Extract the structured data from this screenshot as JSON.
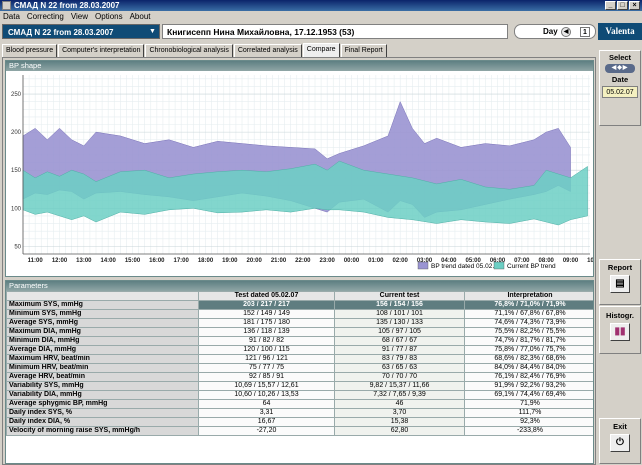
{
  "window": {
    "title": "СМАД  N 22 from 28.03.2007"
  },
  "menu": [
    "Data",
    "Correcting",
    "View",
    "Options",
    "About"
  ],
  "record": {
    "label": "СМАД  N 22 from 28.03.2007"
  },
  "patient": {
    "name": "Книгисепп Нина Михайловна, 17.12.1953 (53)"
  },
  "day": {
    "label": "Day",
    "value": "1"
  },
  "tabs": [
    "Blood pressure",
    "Computer's interpretation",
    "Chronobiological analysis",
    "Correlated analysis",
    "Compare",
    "Final Report"
  ],
  "active_tab": "Compare",
  "chart_panel": {
    "title": "BP shape"
  },
  "chart_data": {
    "type": "area",
    "title": "",
    "x_ticks": [
      "11:00",
      "12:00",
      "13:00",
      "14:00",
      "15:00",
      "16:00",
      "17:00",
      "18:00",
      "19:00",
      "20:00",
      "21:00",
      "22:00",
      "23:00",
      "00:00",
      "01:00",
      "02:00",
      "03:00",
      "04:00",
      "05:00",
      "06:00",
      "07:00",
      "08:00",
      "09:00",
      "10:00"
    ],
    "ylim": [
      40,
      275
    ],
    "y_ticks": [
      50,
      100,
      150,
      200,
      250
    ],
    "x_unit": "hours from 11:00",
    "grid": true,
    "legend": "bottom-right",
    "series": [
      {
        "name": "BP trend dated 05.02.07",
        "color": "#9a94d2",
        "x": [
          0,
          0.5,
          1,
          1.5,
          2,
          2.5,
          3,
          4,
          5,
          6,
          7,
          8,
          9,
          10,
          11,
          12,
          12.5,
          13,
          14,
          15,
          15.5,
          16,
          16.5,
          17,
          18,
          19,
          20,
          21,
          21.5,
          22,
          22.5
        ],
        "upper": [
          195,
          205,
          190,
          205,
          190,
          182,
          200,
          195,
          185,
          190,
          180,
          188,
          185,
          182,
          180,
          178,
          165,
          172,
          182,
          195,
          240,
          205,
          185,
          192,
          180,
          185,
          182,
          190,
          200,
          205,
          180
        ],
        "lower": [
          112,
          120,
          118,
          124,
          122,
          112,
          120,
          122,
          118,
          115,
          110,
          115,
          120,
          116,
          110,
          100,
          95,
          108,
          112,
          95,
          110,
          105,
          88,
          95,
          98,
          105,
          112,
          118,
          122,
          130,
          122
        ]
      },
      {
        "name": "Current BP trend",
        "color": "#6ccfc4",
        "x": [
          0,
          0.5,
          1,
          1.5,
          2,
          2.5,
          3,
          4,
          5,
          6,
          7,
          8,
          9,
          10,
          11,
          12,
          12.5,
          13,
          14,
          15,
          16,
          17,
          18,
          19,
          20,
          21,
          21.5,
          22,
          22.5,
          23.2
        ],
        "upper": [
          150,
          140,
          148,
          142,
          150,
          145,
          135,
          148,
          150,
          140,
          145,
          148,
          150,
          148,
          152,
          158,
          150,
          162,
          150,
          145,
          140,
          132,
          138,
          128,
          125,
          130,
          150,
          145,
          140,
          155
        ],
        "lower": [
          98,
          92,
          95,
          90,
          85,
          90,
          82,
          95,
          92,
          98,
          100,
          94,
          95,
          98,
          95,
          100,
          98,
          98,
          95,
          88,
          85,
          80,
          85,
          82,
          80,
          86,
          82,
          78,
          85,
          90
        ]
      }
    ]
  },
  "params": {
    "title": "Parameters",
    "headers": [
      "",
      "Test dated 05.02.07",
      "Current test",
      "Interpretation"
    ],
    "rows": [
      [
        "Maximum SYS, mmHg",
        "203 / 217 / 217",
        "156 / 154 / 156",
        "76,8% / 71,0% / 71,9%"
      ],
      [
        "Minimum SYS, mmHg",
        "152 / 149 / 149",
        "108 / 101 / 101",
        "71,1% / 67,8% / 67,8%"
      ],
      [
        "Average SYS, mmHg",
        "181 / 175 / 180",
        "135 / 130 / 133",
        "74,6% / 74,3% / 73,9%"
      ],
      [
        "Maximum DIA, mmHg",
        "136 / 118 / 139",
        "105 / 97 / 105",
        "75,5% / 82,2% / 75,5%"
      ],
      [
        "Minimum DIA, mmHg",
        "91 / 82 / 82",
        "68 / 67 / 67",
        "74,7% / 81,7% / 81,7%"
      ],
      [
        "Average DIA, mmHg",
        "120 / 100 / 115",
        "91 / 77 / 87",
        "75,8% / 77,0% / 75,7%"
      ],
      [
        "Maximum HRV, beat/min",
        "121 / 96 / 121",
        "83 / 79 / 83",
        "68,6% / 82,3% / 68,6%"
      ],
      [
        "Minimum HRV, beat/min",
        "75 / 77 / 75",
        "63 / 65 / 63",
        "84,0% / 84,4% / 84,0%"
      ],
      [
        "Average HRV, beat/min",
        "92 / 85 / 91",
        "70 / 70 / 70",
        "76,1% / 82,4% / 76,9%"
      ],
      [
        "Variability SYS, mmHg",
        "10,69 / 15,57 / 12,61",
        "9,82 / 15,37 / 11,66",
        "91,9% / 92,2% / 93,2%"
      ],
      [
        "Variability DIA, mmHg",
        "10,60 / 10,26 / 13,53",
        "7,32 / 7,65 / 9,39",
        "69,1% / 74,4% / 69,4%"
      ],
      [
        "Average sphygmic BP, mmHg",
        "64",
        "46",
        "71,9%"
      ],
      [
        "Daily index SYS, %",
        "3,31",
        "3,70",
        "111,7%"
      ],
      [
        "Daily index DIA, %",
        "16,67",
        "15,38",
        "92,3%"
      ],
      [
        "Velocity of morning raise SYS, mmHg/h",
        "-27,20",
        "62,80",
        "-233,8%"
      ]
    ]
  },
  "right_panel": {
    "logo": "Valenta",
    "select_label": "Select",
    "date_label": "Date",
    "date_value": "05.02.07",
    "report_label": "Report",
    "histogr_label": "Histogr.",
    "exit_label": "Exit"
  }
}
